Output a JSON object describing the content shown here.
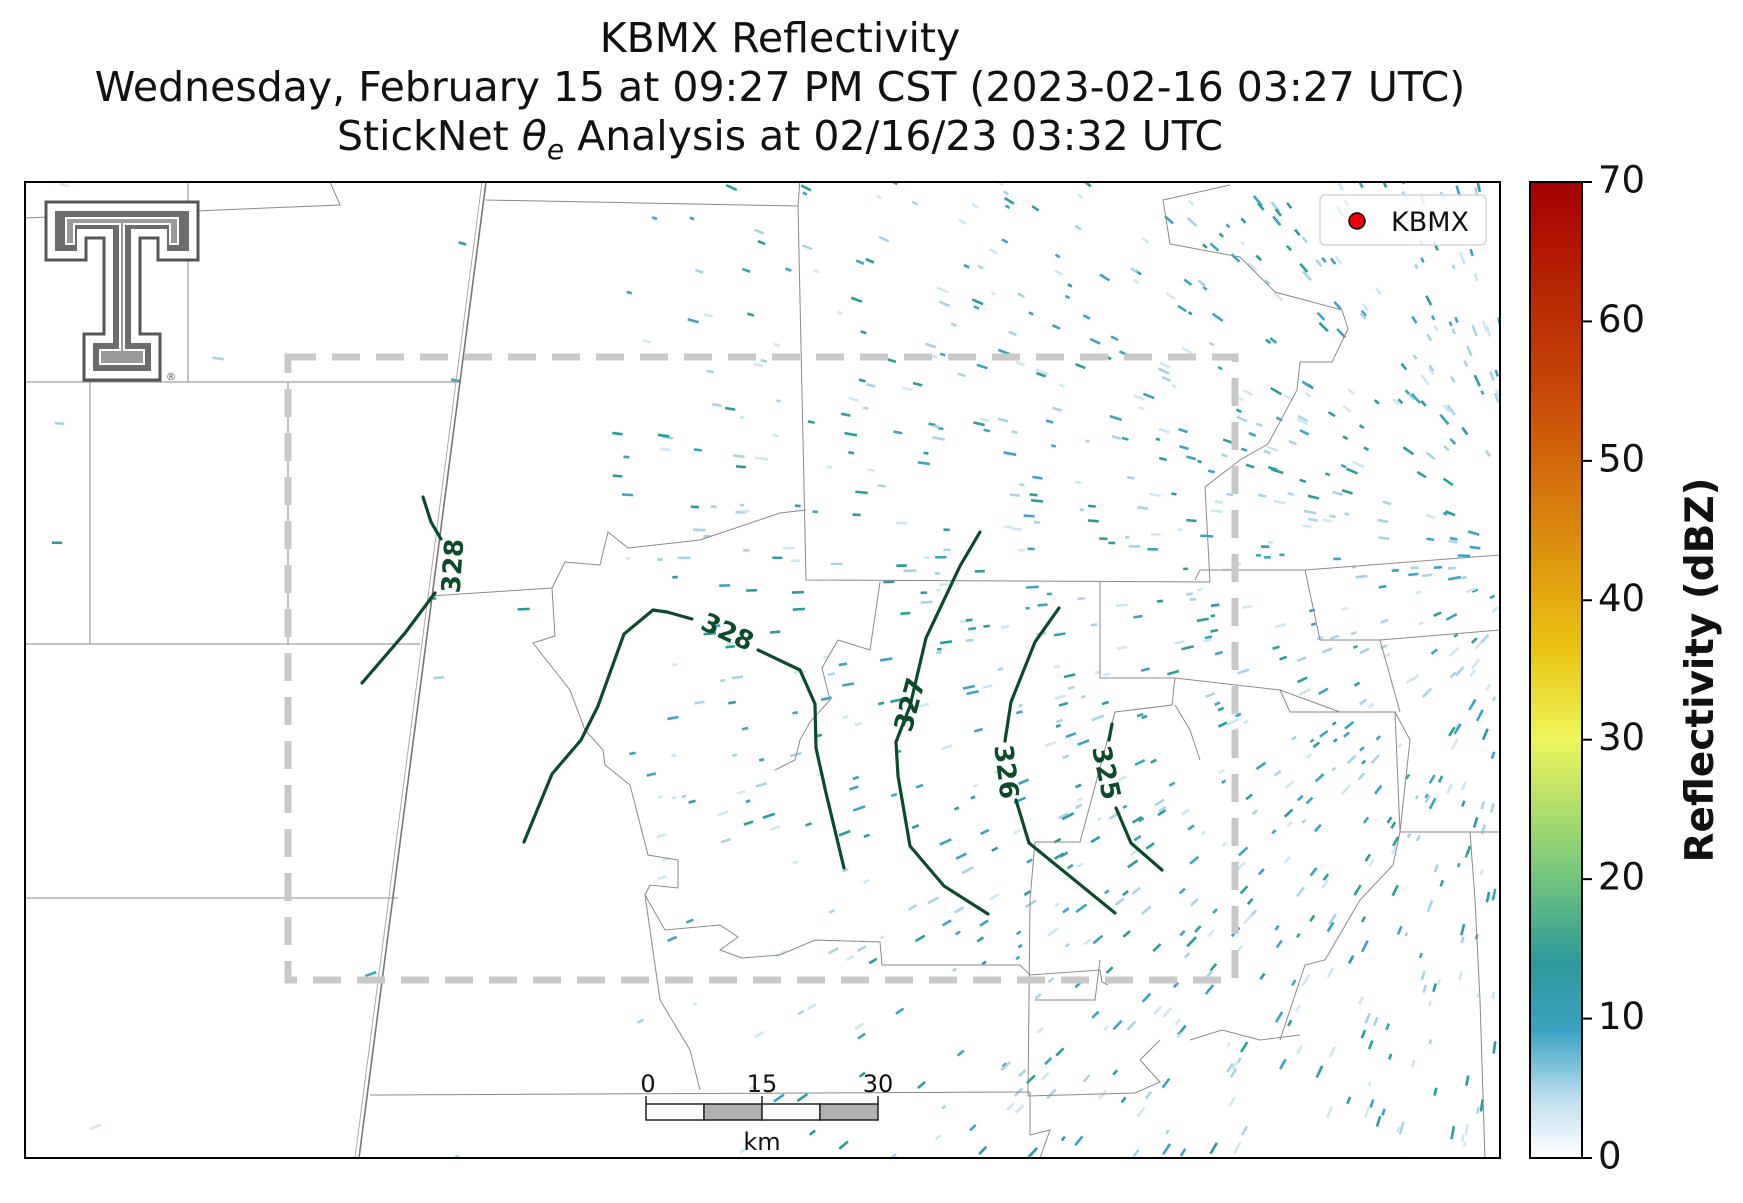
{
  "title": {
    "line1": "KBMX Reflectivity",
    "line2": "Wednesday, February 15 at 09:27 PM CST (2023-02-16 03:27 UTC)",
    "line3_prefix": "StickNet ",
    "line3_theta": "θ",
    "line3_sub": "e",
    "line3_suffix": " Analysis at 02/16/23 03:32 UTC"
  },
  "legend": {
    "label": "KBMX",
    "marker_color": "#e8000b"
  },
  "colorbar": {
    "label": "Reflectivity (dBZ)",
    "min": 0,
    "max": 70,
    "ticks": [
      "0",
      "10",
      "20",
      "30",
      "40",
      "50",
      "60",
      "70"
    ]
  },
  "scalebar": {
    "labels": [
      "0",
      "15",
      "30"
    ],
    "unit": "km"
  },
  "contours": {
    "color": "#0b4a2a",
    "labels": [
      "328",
      "328",
      "327",
      "326",
      "325"
    ]
  },
  "logo": {
    "name": "Texas Tech Double T",
    "mark": "®"
  },
  "colors": {
    "echo_light": "#a7d3e6",
    "echo_mid": "#3ba2c2",
    "echo_teal": "#2a9d9a",
    "domain_box": "#c8c8c8",
    "boundary": "#8a8a8a"
  }
}
